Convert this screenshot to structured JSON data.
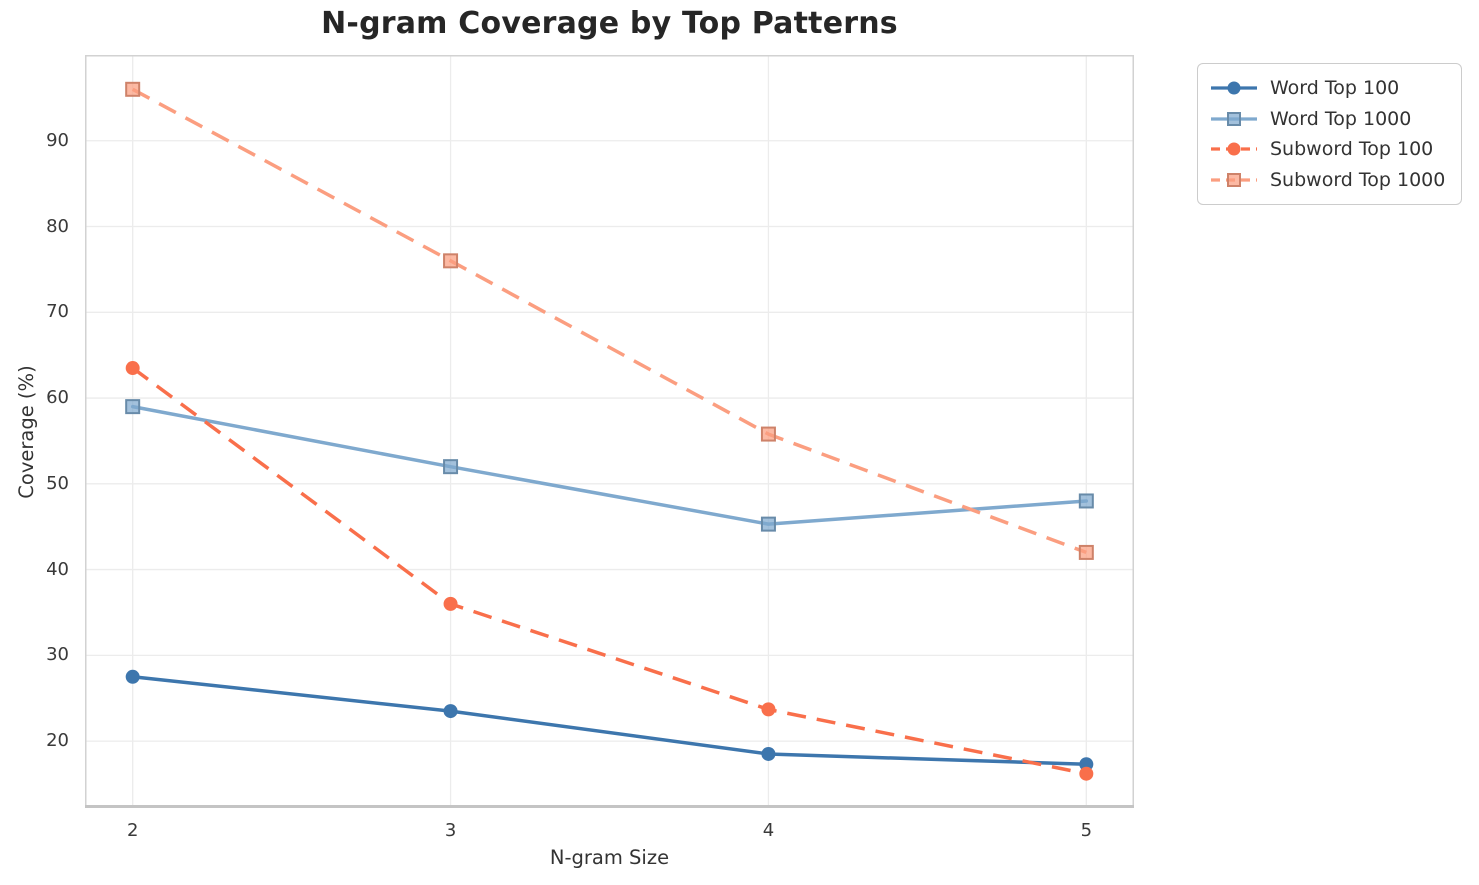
{
  "chart_data": {
    "type": "line",
    "title": "N-gram Coverage by Top Patterns",
    "xlabel": "N-gram Size",
    "ylabel": "Coverage (%)",
    "x": [
      2,
      3,
      4,
      5
    ],
    "xticks": [
      2,
      3,
      4,
      5
    ],
    "yticks": [
      20,
      30,
      40,
      50,
      60,
      70,
      80,
      90
    ],
    "xlim": [
      1.85,
      5.15
    ],
    "ylim": [
      12.2,
      100.0
    ],
    "grid": true,
    "legend_position": "outside-top-right",
    "series": [
      {
        "name": "Word Top 100",
        "values": [
          27.5,
          23.5,
          18.5,
          17.3
        ],
        "color": "#3D76AD",
        "line_style": "solid",
        "marker": "circle"
      },
      {
        "name": "Word Top 1000",
        "values": [
          59.0,
          52.0,
          45.3,
          48.0
        ],
        "color": "#7FA9CE",
        "line_style": "solid",
        "marker": "square"
      },
      {
        "name": "Subword Top 100",
        "values": [
          63.5,
          36.0,
          23.7,
          16.2
        ],
        "color": "#F96F4B",
        "line_style": "dashed",
        "marker": "circle"
      },
      {
        "name": "Subword Top 1000",
        "values": [
          96.0,
          76.0,
          55.8,
          42.0
        ],
        "color": "#FB9E80",
        "line_style": "dashed",
        "marker": "square"
      }
    ],
    "colors": {
      "background": "#FFFFFF",
      "gridline": "#ECECEC",
      "spine": "#D2D2D2",
      "bottom_spine": "#C4C4C4",
      "title_text": "#262626",
      "tick_text": "#3A3A3A",
      "label_text": "#333333",
      "legend_border": "#CCCCCC"
    }
  }
}
